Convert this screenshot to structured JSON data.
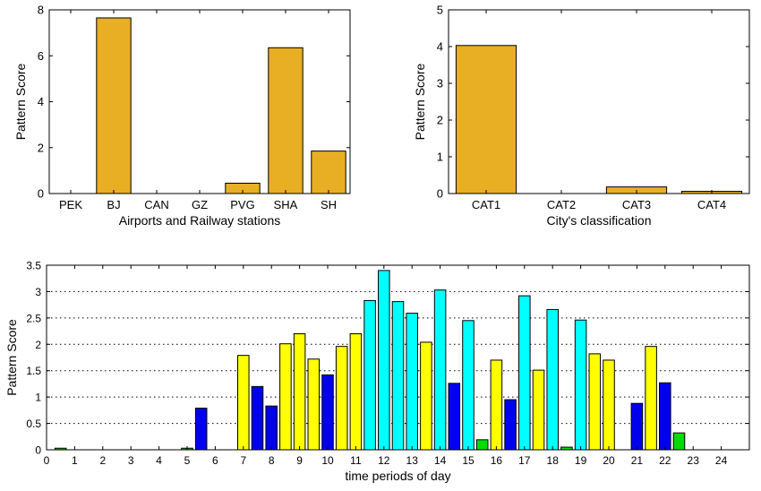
{
  "chart_data": [
    {
      "type": "bar",
      "xlabel": "Airports and Railway stations",
      "ylabel": "Pattern Score",
      "ylim": [
        0,
        8
      ],
      "yticks": [
        0,
        2,
        4,
        6,
        8
      ],
      "grid": false,
      "bar_color": "#E8AE24",
      "categories": [
        "PEK",
        "BJ",
        "CAN",
        "GZ",
        "PVG",
        "SHA",
        "SH"
      ],
      "values": [
        0,
        7.65,
        0,
        0,
        0.45,
        6.35,
        1.85
      ]
    },
    {
      "type": "bar",
      "xlabel": "City's classification",
      "ylabel": "Pattern Score",
      "ylim": [
        0,
        5
      ],
      "yticks": [
        0,
        1,
        2,
        3,
        4,
        5
      ],
      "grid": false,
      "bar_color": "#E8AE24",
      "categories": [
        "CAT1",
        "CAT2",
        "CAT3",
        "CAT4"
      ],
      "values": [
        4.03,
        0,
        0.18,
        0.06
      ]
    },
    {
      "type": "bar",
      "xlabel": "time periods of day",
      "ylabel": "Pattern Score",
      "ylim": [
        0,
        3.5
      ],
      "xlim": [
        0,
        25
      ],
      "yticks": [
        0,
        0.5,
        1,
        1.5,
        2,
        2.5,
        3,
        3.5
      ],
      "xticks": [
        0,
        1,
        2,
        3,
        4,
        5,
        6,
        7,
        8,
        9,
        10,
        11,
        12,
        13,
        14,
        15,
        16,
        17,
        18,
        19,
        20,
        21,
        22,
        23,
        24
      ],
      "grid": "horizontal dotted",
      "colors": {
        "green": "#00DD00",
        "blue": "#0000EE",
        "yellow": "#FFFF00",
        "cyan": "#00FFFF"
      },
      "bars": [
        {
          "x": 0.5,
          "value": 0.03,
          "color": "green"
        },
        {
          "x": 5,
          "value": 0.03,
          "color": "green"
        },
        {
          "x": 5.5,
          "value": 0.79,
          "color": "blue"
        },
        {
          "x": 7,
          "value": 1.79,
          "color": "yellow"
        },
        {
          "x": 7.5,
          "value": 1.2,
          "color": "blue"
        },
        {
          "x": 8,
          "value": 0.83,
          "color": "blue"
        },
        {
          "x": 8.5,
          "value": 2.01,
          "color": "yellow"
        },
        {
          "x": 9,
          "value": 2.2,
          "color": "yellow"
        },
        {
          "x": 9.5,
          "value": 1.72,
          "color": "yellow"
        },
        {
          "x": 10,
          "value": 1.42,
          "color": "blue"
        },
        {
          "x": 10.5,
          "value": 1.96,
          "color": "yellow"
        },
        {
          "x": 11,
          "value": 2.2,
          "color": "yellow"
        },
        {
          "x": 11.5,
          "value": 2.83,
          "color": "cyan"
        },
        {
          "x": 12,
          "value": 3.4,
          "color": "cyan"
        },
        {
          "x": 12.5,
          "value": 2.81,
          "color": "cyan"
        },
        {
          "x": 13,
          "value": 2.59,
          "color": "cyan"
        },
        {
          "x": 13.5,
          "value": 2.04,
          "color": "yellow"
        },
        {
          "x": 14,
          "value": 3.03,
          "color": "cyan"
        },
        {
          "x": 14.5,
          "value": 1.26,
          "color": "blue"
        },
        {
          "x": 15,
          "value": 2.45,
          "color": "cyan"
        },
        {
          "x": 15.5,
          "value": 0.19,
          "color": "green"
        },
        {
          "x": 16,
          "value": 1.7,
          "color": "yellow"
        },
        {
          "x": 16.5,
          "value": 0.95,
          "color": "blue"
        },
        {
          "x": 17,
          "value": 2.92,
          "color": "cyan"
        },
        {
          "x": 17.5,
          "value": 1.51,
          "color": "yellow"
        },
        {
          "x": 18,
          "value": 2.66,
          "color": "cyan"
        },
        {
          "x": 18.5,
          "value": 0.05,
          "color": "green"
        },
        {
          "x": 19,
          "value": 2.46,
          "color": "cyan"
        },
        {
          "x": 19.5,
          "value": 1.82,
          "color": "yellow"
        },
        {
          "x": 20,
          "value": 1.7,
          "color": "yellow"
        },
        {
          "x": 21,
          "value": 0.88,
          "color": "blue"
        },
        {
          "x": 21.5,
          "value": 1.96,
          "color": "yellow"
        },
        {
          "x": 22,
          "value": 1.27,
          "color": "blue"
        },
        {
          "x": 22.5,
          "value": 0.32,
          "color": "green"
        }
      ]
    }
  ]
}
